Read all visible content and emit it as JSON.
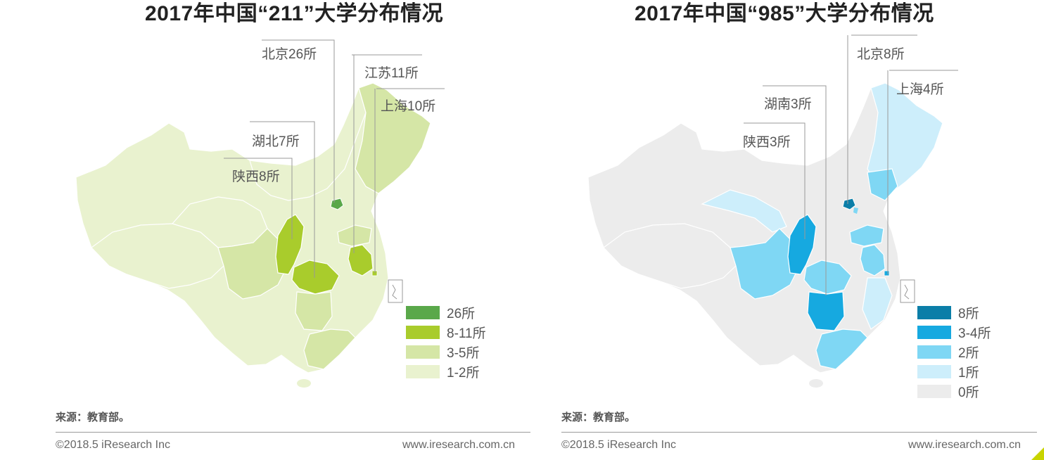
{
  "panels": [
    {
      "id": "211",
      "title": "2017年中国“211”大学分布情况",
      "callouts": [
        "北京26所",
        "江苏11所",
        "上海10所",
        "湖北7所",
        "陕西8所"
      ],
      "legend": [
        {
          "label": "26所",
          "color": "#5aa84a"
        },
        {
          "label": "8-11所",
          "color": "#a9cc2c"
        },
        {
          "label": "3-5所",
          "color": "#d5e6a6"
        },
        {
          "label": "1-2所",
          "color": "#e9f2cf"
        }
      ],
      "source": "来源：教育部。",
      "copyright": "©2018.5 iResearch Inc",
      "website": "www.iresearch.com.cn"
    },
    {
      "id": "985",
      "title": "2017年中国“985”大学分布情况",
      "callouts": [
        "北京8所",
        "上海4所",
        "湖南3所",
        "陕西3所"
      ],
      "legend": [
        {
          "label": "8所",
          "color": "#0b7ea8"
        },
        {
          "label": "3-4所",
          "color": "#16a9e0"
        },
        {
          "label": "2所",
          "color": "#7fd7f4"
        },
        {
          "label": "1所",
          "color": "#cdeefb"
        },
        {
          "label": "0所",
          "color": "#ececec"
        }
      ],
      "source": "来源：教育部。",
      "copyright": "©2018.5 iResearch Inc",
      "website": "www.iresearch.com.cn"
    }
  ],
  "accent_color": "#c8d400"
}
